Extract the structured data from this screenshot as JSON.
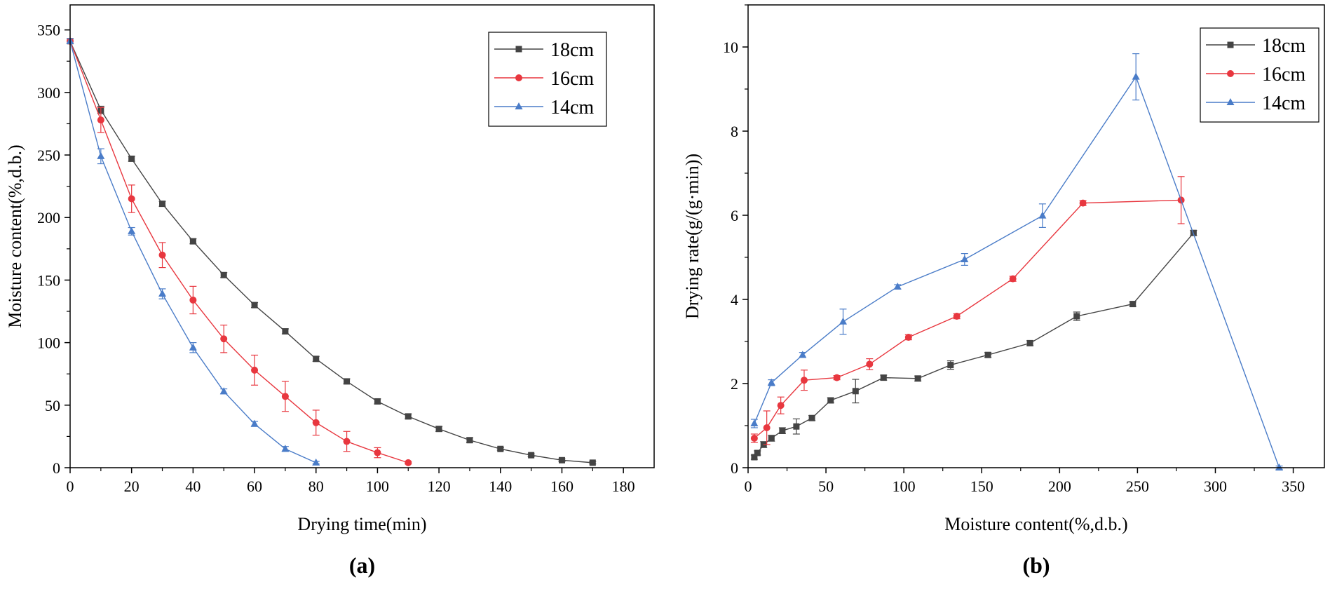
{
  "chart_data": [
    {
      "type": "line",
      "panel_label": "(a)",
      "xlabel": "Drying time(min)",
      "ylabel": "Moisture content(%,d.b.)",
      "xlim": [
        0,
        190
      ],
      "ylim": [
        0,
        370
      ],
      "xticks": [
        0,
        20,
        40,
        60,
        80,
        100,
        120,
        140,
        160,
        180
      ],
      "yticks": [
        0,
        50,
        100,
        150,
        200,
        250,
        300,
        350
      ],
      "grid": false,
      "legend_position": "top-right",
      "series": [
        {
          "name": "18cm",
          "color": "#444444",
          "marker": "square",
          "x": [
            0,
            10,
            20,
            30,
            40,
            50,
            60,
            70,
            80,
            90,
            100,
            110,
            120,
            130,
            140,
            150,
            160,
            170
          ],
          "y": [
            341,
            286,
            247,
            211,
            181,
            154,
            130,
            109,
            87,
            69,
            53,
            41,
            31,
            22,
            15,
            10,
            6,
            4
          ],
          "err": [
            2,
            3,
            2,
            2,
            2,
            2,
            2,
            2,
            2,
            2,
            2,
            2,
            2,
            2,
            1,
            1,
            1,
            1
          ]
        },
        {
          "name": "16cm",
          "color": "#e8373f",
          "marker": "circle",
          "x": [
            0,
            10,
            20,
            30,
            40,
            50,
            60,
            70,
            80,
            90,
            100,
            110
          ],
          "y": [
            341,
            278,
            215,
            170,
            134,
            103,
            78,
            57,
            36,
            21,
            12,
            4
          ],
          "err": [
            2,
            10,
            11,
            10,
            11,
            11,
            12,
            12,
            10,
            8,
            4,
            1
          ]
        },
        {
          "name": "14cm",
          "color": "#4a7cc8",
          "marker": "triangle",
          "x": [
            0,
            10,
            20,
            30,
            40,
            50,
            60,
            70,
            80
          ],
          "y": [
            341,
            249,
            189,
            139,
            96,
            61,
            35,
            15,
            4
          ],
          "err": [
            2,
            6,
            3,
            4,
            4,
            2,
            2,
            2,
            1
          ]
        }
      ]
    },
    {
      "type": "line",
      "panel_label": "(b)",
      "xlabel": "Moisture content(%,d.b.)",
      "ylabel": "Drying rate(g/(g·min))",
      "xlim": [
        0,
        370
      ],
      "ylim": [
        0,
        11
      ],
      "xticks": [
        0,
        50,
        100,
        150,
        200,
        250,
        300,
        350
      ],
      "yticks": [
        0,
        2,
        4,
        6,
        8,
        10
      ],
      "grid": false,
      "legend_position": "top-right",
      "series": [
        {
          "name": "18cm",
          "color": "#444444",
          "marker": "square",
          "x": [
            4,
            6,
            10,
            15,
            22,
            31,
            41,
            53,
            69,
            87,
            109,
            130,
            154,
            181,
            211,
            247,
            286
          ],
          "y": [
            0.25,
            0.35,
            0.55,
            0.7,
            0.88,
            0.98,
            1.18,
            1.6,
            1.82,
            2.14,
            2.12,
            2.44,
            2.68,
            2.96,
            3.6,
            3.89,
            5.58
          ],
          "err": [
            0.05,
            0.05,
            0.07,
            0.07,
            0.07,
            0.18,
            0.06,
            0.06,
            0.28,
            0.06,
            0.06,
            0.1,
            0.06,
            0.06,
            0.1,
            0.05,
            0.06
          ]
        },
        {
          "name": "16cm",
          "color": "#e8373f",
          "marker": "circle",
          "x": [
            4,
            12,
            21,
            36,
            57,
            78,
            103,
            134,
            170,
            215,
            278
          ],
          "y": [
            0.7,
            0.95,
            1.48,
            2.08,
            2.14,
            2.46,
            3.1,
            3.6,
            4.49,
            6.29,
            6.36
          ],
          "err": [
            0.1,
            0.4,
            0.2,
            0.24,
            0.05,
            0.13,
            0.06,
            0.06,
            0.06,
            0.06,
            0.56
          ]
        },
        {
          "name": "14cm",
          "color": "#4a7cc8",
          "marker": "triangle",
          "x": [
            4,
            15,
            35,
            61,
            96,
            139,
            189,
            249,
            341
          ],
          "y": [
            1.05,
            2.02,
            2.68,
            3.47,
            4.3,
            4.95,
            5.99,
            9.29,
            0
          ],
          "err": [
            0.1,
            0.07,
            0.06,
            0.3,
            0.05,
            0.14,
            0.28,
            0.55,
            0.04
          ]
        }
      ]
    }
  ]
}
